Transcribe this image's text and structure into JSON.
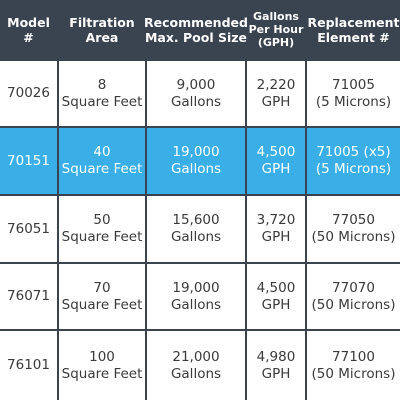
{
  "table": {
    "header": [
      [
        "Model",
        "#"
      ],
      [
        "Filtration",
        "Area"
      ],
      [
        "Recommended",
        "Max. Pool Size"
      ],
      [
        "Gallons",
        "Per Hour",
        "(GPH)"
      ],
      [
        "Replacement",
        "Element #"
      ]
    ],
    "rows": [
      [
        [
          "70026"
        ],
        [
          "8",
          "Square Feet"
        ],
        [
          "9,000",
          "Gallons"
        ],
        [
          "2,220",
          "GPH"
        ],
        [
          "71005",
          "(5 Microns)"
        ]
      ],
      [
        [
          "70151"
        ],
        [
          "40",
          "Square Feet"
        ],
        [
          "19,000",
          "Gallons"
        ],
        [
          "4,500",
          "GPH"
        ],
        [
          "71005 (x5)",
          "(5 Microns)"
        ]
      ],
      [
        [
          "76051"
        ],
        [
          "50",
          "Square Feet"
        ],
        [
          "15,600",
          "Gallons"
        ],
        [
          "3,720",
          "GPH"
        ],
        [
          "77050",
          "(50 Microns)"
        ]
      ],
      [
        [
          "76071"
        ],
        [
          "70",
          "Square Feet"
        ],
        [
          "19,000",
          "Gallons"
        ],
        [
          "4,500",
          "GPH"
        ],
        [
          "77070",
          "(50 Microns)"
        ]
      ],
      [
        [
          "76101"
        ],
        [
          "100",
          "Square Feet"
        ],
        [
          "21,000",
          "Gallons"
        ],
        [
          "4,980",
          "GPH"
        ],
        [
          "77100",
          "(50 Microns)"
        ]
      ]
    ]
  }
}
